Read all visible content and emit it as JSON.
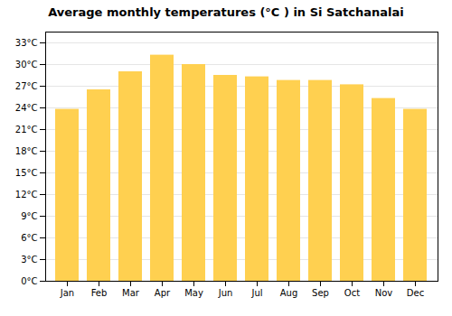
{
  "chart_data": {
    "type": "bar",
    "title": "Average monthly temperatures (°C ) in Si Satchanalai",
    "categories": [
      "Jan",
      "Feb",
      "Mar",
      "Apr",
      "May",
      "Jun",
      "Jul",
      "Aug",
      "Sep",
      "Oct",
      "Nov",
      "Dec"
    ],
    "values": [
      23.8,
      26.5,
      29.0,
      31.3,
      30.0,
      28.5,
      28.3,
      27.8,
      27.8,
      27.2,
      25.3,
      23.8
    ],
    "color": "#FFD050",
    "ylim": [
      0,
      34.5
    ],
    "yticks": [
      {
        "value": 0,
        "label": "0°C"
      },
      {
        "value": 3,
        "label": "3°C"
      },
      {
        "value": 6,
        "label": "6°C"
      },
      {
        "value": 9,
        "label": "9°C"
      },
      {
        "value": 12,
        "label": "12°C"
      },
      {
        "value": 15,
        "label": "15°C"
      },
      {
        "value": 18,
        "label": "18°C"
      },
      {
        "value": 21,
        "label": "21°C"
      },
      {
        "value": 24,
        "label": "24°C"
      },
      {
        "value": 27,
        "label": "27°C"
      },
      {
        "value": 30,
        "label": "30°C"
      },
      {
        "value": 33,
        "label": "33°C"
      }
    ],
    "grid": true
  }
}
